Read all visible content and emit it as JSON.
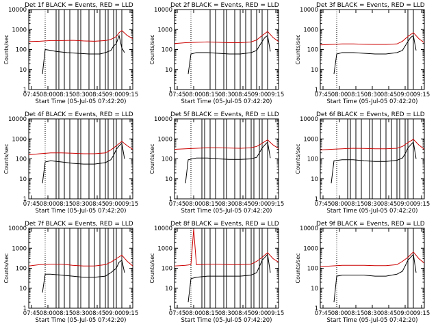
{
  "chart_data": [
    {
      "type": "line",
      "title": "Det 1f BLACK = Events, RED = LLD",
      "xlabel": "Start Time (05-Jul-05 07:42:20)",
      "ylabel": "Counts/sec",
      "xticks": [
        "07:45",
        "08:00",
        "08:15",
        "08:30",
        "08:45",
        "09:00",
        "09:15"
      ],
      "yticks": [
        "1",
        "10",
        "100",
        "1000",
        "10000"
      ],
      "xlim": [
        0,
        38
      ],
      "ylim": [
        1,
        10000
      ],
      "yscale": "log",
      "dotted_x": [
        6,
        34
      ],
      "black_lines": [
        10,
        11,
        13,
        15,
        18,
        19,
        22,
        24,
        26,
        28,
        29,
        31,
        32,
        34
      ],
      "series": [
        {
          "name": "Events",
          "color": "#000000",
          "x": [
            5,
            6,
            8,
            10,
            14,
            18,
            22,
            26,
            28,
            30,
            31,
            32,
            33,
            34,
            35
          ],
          "y": [
            6,
            100,
            90,
            80,
            70,
            65,
            60,
            60,
            70,
            90,
            150,
            200,
            500,
            120,
            70
          ]
        },
        {
          "name": "LLD",
          "color": "#cc0000",
          "x": [
            0,
            4,
            8,
            12,
            16,
            20,
            24,
            28,
            30,
            32,
            33,
            34,
            36,
            38
          ],
          "y": [
            250,
            260,
            280,
            280,
            290,
            270,
            260,
            280,
            320,
            450,
            700,
            900,
            500,
            350
          ]
        }
      ]
    },
    {
      "type": "line",
      "title": "Det 2f BLACK = Events, RED = LLD",
      "xlabel": "Start Time (05-Jul-05 07:42:20)",
      "ylabel": "Counts/sec",
      "xticks": [
        "07:45",
        "08:00",
        "08:15",
        "08:30",
        "08:45",
        "09:00",
        "09:15"
      ],
      "yticks": [
        "1",
        "10",
        "100",
        "1000",
        "10000"
      ],
      "xlim": [
        0,
        38
      ],
      "ylim": [
        1,
        10000
      ],
      "yscale": "log",
      "dotted_x": [
        6,
        34
      ],
      "black_lines": [
        13,
        15,
        18,
        19,
        22,
        24,
        26,
        28,
        30,
        32,
        34
      ],
      "series": [
        {
          "name": "Events",
          "color": "#000000",
          "x": [
            5,
            6,
            8,
            12,
            16,
            20,
            24,
            28,
            30,
            31,
            32,
            33,
            34,
            35
          ],
          "y": [
            6,
            60,
            70,
            70,
            65,
            60,
            60,
            70,
            90,
            150,
            250,
            400,
            500,
            80
          ]
        },
        {
          "name": "LLD",
          "color": "#cc0000",
          "x": [
            0,
            4,
            8,
            12,
            16,
            20,
            24,
            28,
            30,
            32,
            34,
            36,
            38
          ],
          "y": [
            200,
            220,
            230,
            240,
            230,
            220,
            220,
            240,
            300,
            500,
            800,
            400,
            250
          ]
        }
      ]
    },
    {
      "type": "line",
      "title": "Det 3f BLACK = Events, RED = LLD",
      "xlabel": "Start Time (05-Jul-05 07:42:20)",
      "ylabel": "Counts/sec",
      "xticks": [
        "07:45",
        "08:00",
        "08:15",
        "08:30",
        "08:45",
        "09:00",
        "09:15"
      ],
      "yticks": [
        "1",
        "10",
        "100",
        "1000",
        "10000"
      ],
      "xlim": [
        0,
        38
      ],
      "ylim": [
        1,
        10000
      ],
      "yscale": "log",
      "dotted_x": [
        6,
        34
      ],
      "black_lines": [
        32,
        34
      ],
      "series": [
        {
          "name": "Events",
          "color": "#000000",
          "x": [
            5,
            6,
            8,
            12,
            16,
            20,
            24,
            28,
            30,
            31,
            32,
            33,
            34,
            35
          ],
          "y": [
            6,
            60,
            70,
            70,
            65,
            60,
            60,
            70,
            90,
            150,
            250,
            400,
            500,
            90
          ]
        },
        {
          "name": "LLD",
          "color": "#cc0000",
          "x": [
            0,
            4,
            8,
            12,
            16,
            20,
            24,
            28,
            30,
            32,
            34,
            36,
            38
          ],
          "y": [
            170,
            180,
            190,
            190,
            185,
            180,
            180,
            190,
            260,
            450,
            700,
            350,
            220
          ]
        }
      ]
    },
    {
      "type": "line",
      "title": "Det 4f BLACK = Events, RED = LLD",
      "xlabel": "Start Time (05-Jul-05 07:42:20)",
      "ylabel": "Counts/sec",
      "xticks": [
        "07:45",
        "08:00",
        "08:15",
        "08:30",
        "08:45",
        "09:00",
        "09:15"
      ],
      "yticks": [
        "1",
        "10",
        "100",
        "1000",
        "10000"
      ],
      "xlim": [
        0,
        38
      ],
      "ylim": [
        1,
        10000
      ],
      "yscale": "log",
      "dotted_x": [
        6,
        34
      ],
      "black_lines": [
        10,
        11,
        13,
        15,
        18,
        19,
        22,
        24,
        26,
        28,
        29,
        31,
        32,
        34
      ],
      "series": [
        {
          "name": "Events",
          "color": "#000000",
          "x": [
            5,
            6,
            8,
            12,
            16,
            20,
            24,
            28,
            30,
            31,
            32,
            33,
            34,
            35
          ],
          "y": [
            6,
            70,
            80,
            70,
            60,
            55,
            55,
            65,
            90,
            150,
            300,
            450,
            600,
            100
          ]
        },
        {
          "name": "LLD",
          "color": "#cc0000",
          "x": [
            0,
            4,
            8,
            12,
            16,
            20,
            24,
            28,
            30,
            32,
            34,
            36,
            38
          ],
          "y": [
            160,
            180,
            200,
            200,
            190,
            180,
            180,
            200,
            280,
            450,
            750,
            450,
            300
          ]
        }
      ]
    },
    {
      "type": "line",
      "title": "Det 5f BLACK = Events, RED = LLD",
      "xlabel": "Start Time (05-Jul-05 07:42:20)",
      "ylabel": "Counts/sec",
      "xticks": [
        "07:45",
        "08:00",
        "08:15",
        "08:30",
        "08:45",
        "09:00",
        "09:15"
      ],
      "yticks": [
        "1",
        "10",
        "100",
        "1000",
        "10000"
      ],
      "xlim": [
        0,
        38
      ],
      "ylim": [
        1,
        10000
      ],
      "yscale": "log",
      "dotted_x": [
        6,
        34
      ],
      "black_lines": [
        10,
        11,
        13,
        15,
        18,
        19,
        22,
        24,
        26,
        28,
        29,
        31,
        32,
        34
      ],
      "series": [
        {
          "name": "Events",
          "color": "#000000",
          "x": [
            4,
            5,
            8,
            12,
            16,
            20,
            24,
            28,
            30,
            31,
            32,
            33,
            34,
            35
          ],
          "y": [
            6,
            90,
            110,
            110,
            100,
            95,
            95,
            100,
            120,
            200,
            350,
            500,
            700,
            110
          ]
        },
        {
          "name": "LLD",
          "color": "#cc0000",
          "x": [
            0,
            4,
            8,
            12,
            16,
            20,
            24,
            28,
            30,
            32,
            34,
            36,
            38
          ],
          "y": [
            300,
            320,
            340,
            360,
            360,
            350,
            340,
            360,
            420,
            600,
            900,
            500,
            330
          ]
        }
      ]
    },
    {
      "type": "line",
      "title": "Det 6f BLACK = Events, RED = LLD",
      "xlabel": "Start Time (05-Jul-05 07:42:20)",
      "ylabel": "Counts/sec",
      "xticks": [
        "07:45",
        "08:00",
        "08:15",
        "08:30",
        "08:45",
        "09:00",
        "09:15"
      ],
      "yticks": [
        "1",
        "10",
        "100",
        "1000",
        "10000"
      ],
      "xlim": [
        0,
        38
      ],
      "ylim": [
        1,
        10000
      ],
      "yscale": "log",
      "dotted_x": [
        6,
        34
      ],
      "black_lines": [
        10,
        11,
        13,
        15,
        18,
        19,
        22,
        24,
        26,
        28,
        29,
        31,
        32,
        34
      ],
      "series": [
        {
          "name": "Events",
          "color": "#000000",
          "x": [
            4,
            5,
            8,
            12,
            16,
            20,
            24,
            28,
            30,
            31,
            32,
            33,
            34,
            35
          ],
          "y": [
            6,
            80,
            90,
            90,
            80,
            75,
            75,
            85,
            110,
            180,
            350,
            500,
            700,
            100
          ]
        },
        {
          "name": "LLD",
          "color": "#cc0000",
          "x": [
            0,
            4,
            8,
            12,
            16,
            20,
            24,
            28,
            30,
            32,
            34,
            36,
            38
          ],
          "y": [
            280,
            300,
            320,
            340,
            330,
            320,
            320,
            340,
            420,
            650,
            950,
            500,
            300
          ]
        }
      ]
    },
    {
      "type": "line",
      "title": "Det 7f BLACK = Events, RED = LLD",
      "xlabel": "Start Time (05-Jul-05 07:42:20)",
      "ylabel": "Counts/sec",
      "xticks": [
        "07:45",
        "08:00",
        "08:15",
        "08:30",
        "08:45",
        "09:00",
        "09:15"
      ],
      "yticks": [
        "1",
        "10",
        "100",
        "1000",
        "10000"
      ],
      "xlim": [
        0,
        38
      ],
      "ylim": [
        1,
        10000
      ],
      "yscale": "log",
      "dotted_x": [
        6,
        34
      ],
      "black_lines": [
        10,
        11,
        13,
        15,
        18,
        19,
        22,
        24,
        26,
        28,
        29,
        31,
        32,
        34
      ],
      "series": [
        {
          "name": "Events",
          "color": "#000000",
          "x": [
            5,
            6,
            8,
            12,
            16,
            20,
            24,
            28,
            30,
            32,
            33,
            34,
            35
          ],
          "y": [
            6,
            50,
            50,
            45,
            40,
            35,
            35,
            40,
            60,
            100,
            200,
            250,
            60
          ]
        },
        {
          "name": "LLD",
          "color": "#cc0000",
          "x": [
            0,
            4,
            8,
            12,
            16,
            20,
            24,
            28,
            30,
            32,
            34,
            36,
            38
          ],
          "y": [
            130,
            150,
            160,
            160,
            140,
            130,
            130,
            150,
            200,
            300,
            450,
            220,
            130
          ]
        }
      ]
    },
    {
      "type": "line",
      "title": "Det 8f BLACK = Events, RED = LLD",
      "xlabel": "Start Time (05-Jul-05 07:42:20)",
      "ylabel": "Counts/sec",
      "xticks": [
        "07:45",
        "08:00",
        "08:15",
        "08:30",
        "08:45",
        "09:00",
        "09:15"
      ],
      "yticks": [
        "1",
        "10",
        "100",
        "1000",
        "10000"
      ],
      "xlim": [
        0,
        38
      ],
      "ylim": [
        1,
        10000
      ],
      "yscale": "log",
      "dotted_x": [
        6,
        34
      ],
      "black_lines": [
        10,
        11,
        13,
        15,
        18,
        19,
        22,
        24,
        26,
        28,
        29,
        31,
        32,
        34
      ],
      "series": [
        {
          "name": "Events",
          "color": "#000000",
          "x": [
            5,
            6,
            8,
            12,
            16,
            20,
            24,
            28,
            30,
            31,
            32,
            33,
            34,
            35
          ],
          "y": [
            2,
            30,
            35,
            40,
            40,
            40,
            40,
            45,
            60,
            120,
            250,
            350,
            500,
            60
          ]
        },
        {
          "name": "LLD",
          "color": "#cc0000",
          "x": [
            0,
            4,
            6,
            7,
            8,
            12,
            16,
            20,
            24,
            28,
            30,
            32,
            34,
            36,
            38
          ],
          "y": [
            130,
            140,
            150,
            9000,
            150,
            160,
            160,
            150,
            150,
            160,
            220,
            350,
            600,
            300,
            200
          ]
        }
      ]
    },
    {
      "type": "line",
      "title": "Det 9f BLACK = Events, RED = LLD",
      "xlabel": "Start Time (05-Jul-05 07:42:20)",
      "ylabel": "Counts/sec",
      "xticks": [
        "07:45",
        "08:00",
        "08:15",
        "08:30",
        "08:45",
        "09:00",
        "09:15"
      ],
      "yticks": [
        "1",
        "10",
        "100",
        "1000",
        "10000"
      ],
      "xlim": [
        0,
        38
      ],
      "ylim": [
        1,
        10000
      ],
      "yscale": "log",
      "dotted_x": [
        6,
        34
      ],
      "black_lines": [
        32,
        34
      ],
      "series": [
        {
          "name": "Events",
          "color": "#000000",
          "x": [
            5,
            6,
            8,
            12,
            16,
            20,
            24,
            28,
            30,
            31,
            32,
            33,
            34,
            35
          ],
          "y": [
            2,
            40,
            45,
            45,
            45,
            40,
            40,
            50,
            70,
            130,
            250,
            350,
            500,
            60
          ]
        },
        {
          "name": "LLD",
          "color": "#cc0000",
          "x": [
            0,
            4,
            8,
            12,
            16,
            20,
            24,
            28,
            30,
            32,
            34,
            36,
            38
          ],
          "y": [
            120,
            130,
            140,
            140,
            140,
            135,
            135,
            150,
            220,
            350,
            650,
            300,
            180
          ]
        }
      ]
    }
  ]
}
